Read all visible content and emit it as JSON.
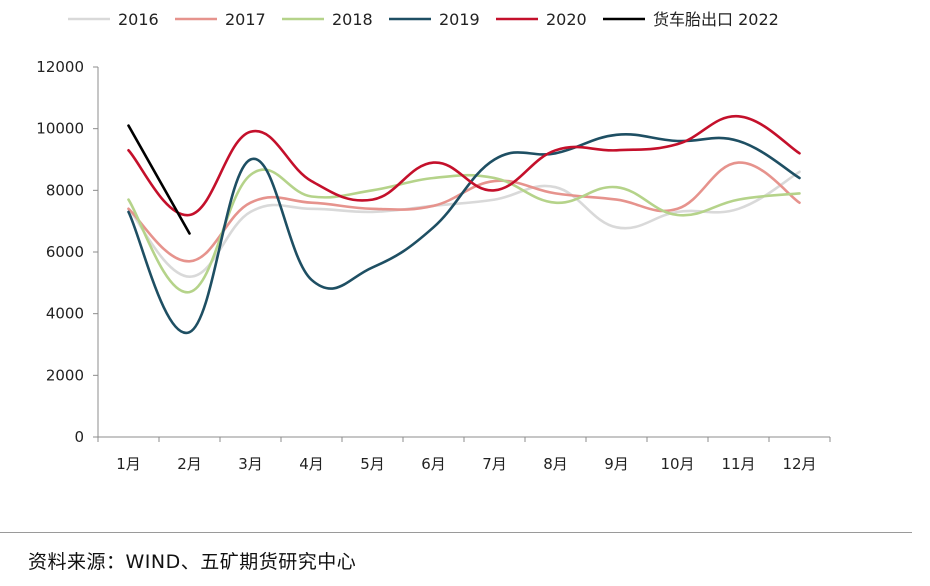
{
  "chart_data": {
    "type": "line",
    "title": "",
    "xlabel": "",
    "ylabel": "",
    "categories": [
      "1月",
      "2月",
      "3月",
      "4月",
      "5月",
      "6月",
      "7月",
      "8月",
      "9月",
      "10月",
      "11月",
      "12月"
    ],
    "ylim": [
      0,
      12000
    ],
    "yticks": [
      0,
      2000,
      4000,
      6000,
      8000,
      10000,
      12000
    ],
    "grid": false,
    "legend_position": "top",
    "series": [
      {
        "name": "2016",
        "color": "#d9d9d9",
        "values": [
          7400,
          5200,
          7300,
          7400,
          7300,
          7500,
          7700,
          8100,
          6800,
          7300,
          7400,
          8600
        ]
      },
      {
        "name": "2017",
        "color": "#e6938d",
        "values": [
          7400,
          5700,
          7600,
          7600,
          7400,
          7500,
          8300,
          7900,
          7700,
          7400,
          8900,
          7600
        ]
      },
      {
        "name": "2018",
        "color": "#b5d38a",
        "values": [
          7700,
          4700,
          8500,
          7800,
          8000,
          8400,
          8400,
          7600,
          8100,
          7200,
          7700,
          7900
        ]
      },
      {
        "name": "2019",
        "color": "#1e4f63",
        "values": [
          7300,
          3400,
          9000,
          5100,
          5500,
          6800,
          9000,
          9200,
          9800,
          9600,
          9600,
          8400
        ]
      },
      {
        "name": "2020",
        "color": "#c4102b",
        "values": [
          9300,
          7200,
          9900,
          8300,
          7700,
          8900,
          8000,
          9300,
          9300,
          9500,
          10400,
          9200
        ]
      },
      {
        "name": "货车胎出口 2022",
        "color": "#000000",
        "values": [
          10100,
          6600,
          null,
          null,
          null,
          null,
          null,
          null,
          null,
          null,
          null,
          null
        ]
      }
    ]
  },
  "footer": {
    "source": "资料来源：WIND、五矿期货研究中心"
  }
}
